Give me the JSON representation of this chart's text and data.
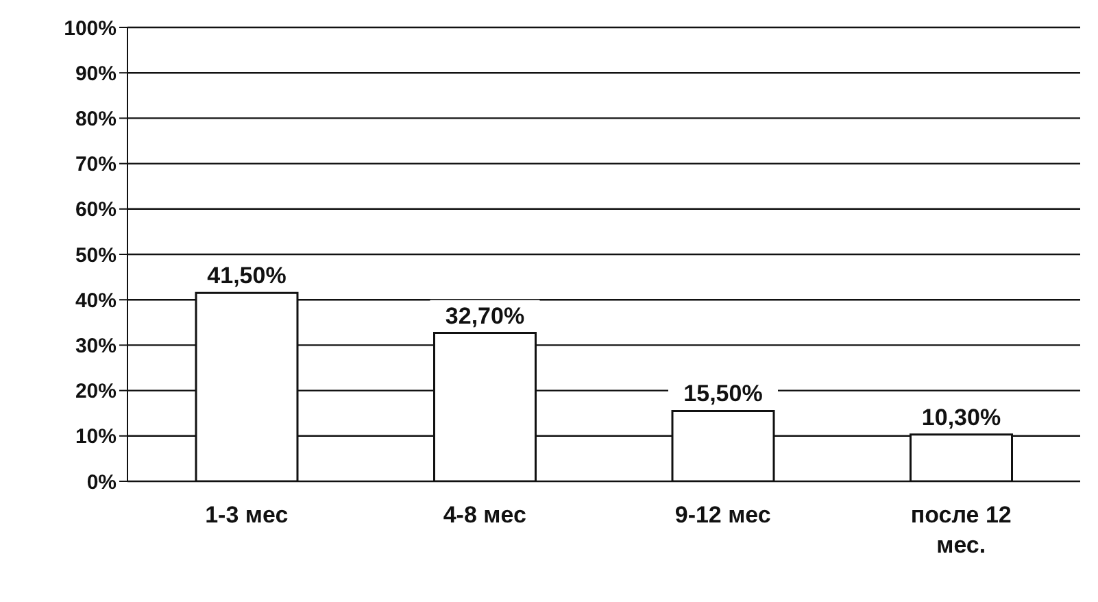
{
  "chart_data": {
    "type": "bar",
    "categories": [
      "1-3 мес",
      "4-8 мес",
      "9-12 мес",
      "после 12 мес."
    ],
    "values": [
      41.5,
      32.7,
      15.5,
      10.3
    ],
    "value_labels": [
      "41,50%",
      "32,70%",
      "15,50%",
      "10,30%"
    ],
    "color": "#ffffff",
    "ylim": [
      0,
      100
    ],
    "yticks": [
      {
        "value": 0,
        "label": "0%"
      },
      {
        "value": 10,
        "label": "10%"
      },
      {
        "value": 20,
        "label": "20%"
      },
      {
        "value": 30,
        "label": "30%"
      },
      {
        "value": 40,
        "label": "40%"
      },
      {
        "value": 50,
        "label": "50%"
      },
      {
        "value": 60,
        "label": "60%"
      },
      {
        "value": 70,
        "label": "70%"
      },
      {
        "value": 80,
        "label": "80%"
      },
      {
        "value": 90,
        "label": "90%"
      },
      {
        "value": 100,
        "label": "100%"
      }
    ],
    "grid": "y",
    "legend": false
  }
}
